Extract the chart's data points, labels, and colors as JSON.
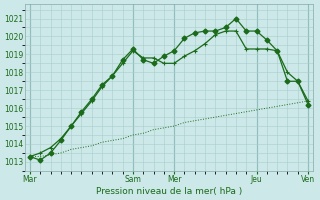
{
  "background_color": "#cce8e8",
  "grid_color_minor": "#aacece",
  "grid_color_major": "#88bbbb",
  "line_color": "#1a6b1a",
  "title": "Pression niveau de la mer( hPa )",
  "ylim": [
    1012.5,
    1021.8
  ],
  "yticks": [
    1013,
    1014,
    1015,
    1016,
    1017,
    1018,
    1019,
    1020,
    1021
  ],
  "xtick_labels": [
    "Mar",
    "Sam",
    "Mer",
    "Jeu",
    "Ven"
  ],
  "xtick_positions": [
    0,
    10,
    14,
    22,
    27
  ],
  "vline_positions": [
    0,
    10,
    14,
    22,
    27
  ],
  "line_dotted_x": [
    0,
    1,
    2,
    3,
    4,
    5,
    6,
    7,
    8,
    9,
    10,
    11,
    12,
    13,
    14,
    15,
    16,
    17,
    18,
    19,
    20,
    21,
    22,
    23,
    24,
    25,
    26,
    27
  ],
  "line_dotted_y": [
    1013.3,
    1013.3,
    1013.4,
    1013.5,
    1013.7,
    1013.8,
    1013.9,
    1014.1,
    1014.2,
    1014.3,
    1014.5,
    1014.6,
    1014.8,
    1014.9,
    1015.0,
    1015.2,
    1015.3,
    1015.4,
    1015.5,
    1015.6,
    1015.7,
    1015.8,
    1015.9,
    1016.0,
    1016.1,
    1016.2,
    1016.3,
    1016.4
  ],
  "line_cross_x": [
    0,
    1,
    2,
    3,
    4,
    5,
    6,
    7,
    8,
    9,
    10,
    11,
    12,
    13,
    14,
    15,
    16,
    17,
    18,
    19,
    20,
    21,
    22,
    23,
    24,
    25,
    26,
    27
  ],
  "line_cross_y": [
    1013.3,
    1013.5,
    1013.8,
    1014.3,
    1015.0,
    1015.7,
    1016.4,
    1017.2,
    1017.8,
    1018.5,
    1019.2,
    1018.8,
    1018.8,
    1018.5,
    1018.5,
    1018.9,
    1019.2,
    1019.6,
    1020.1,
    1020.3,
    1020.3,
    1019.3,
    1019.3,
    1019.3,
    1019.2,
    1018.0,
    1017.5,
    1016.4
  ],
  "line_diamond_x": [
    0,
    1,
    2,
    3,
    4,
    5,
    6,
    7,
    8,
    9,
    10,
    11,
    12,
    13,
    14,
    15,
    16,
    17,
    18,
    19,
    20,
    21,
    22,
    23,
    24,
    25,
    26,
    27
  ],
  "line_diamond_y": [
    1013.3,
    1013.1,
    1013.5,
    1014.2,
    1015.0,
    1015.8,
    1016.5,
    1017.3,
    1017.8,
    1018.7,
    1019.3,
    1018.7,
    1018.5,
    1018.9,
    1019.2,
    1019.9,
    1020.2,
    1020.3,
    1020.3,
    1020.5,
    1021.0,
    1020.3,
    1020.3,
    1019.8,
    1019.2,
    1017.5,
    1017.5,
    1016.2
  ]
}
